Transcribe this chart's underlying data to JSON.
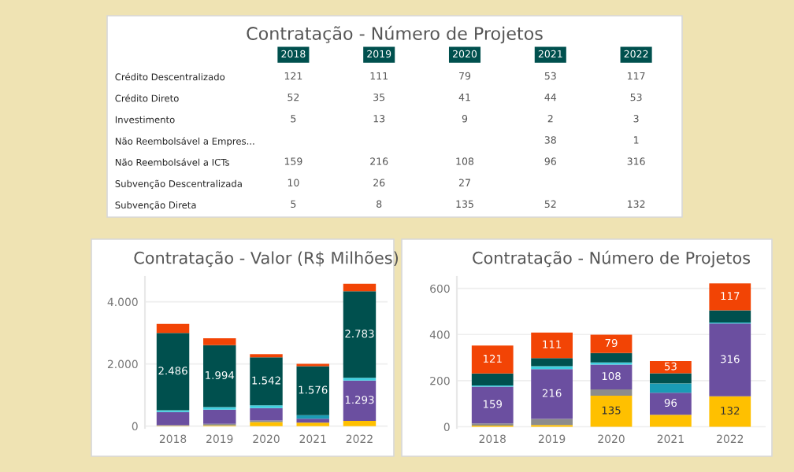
{
  "chart_data": [
    {
      "type": "heatmap",
      "title": "Contratação - Número de Projetos",
      "data_labels": true,
      "categories": [
        "2018",
        "2019",
        "2020",
        "2021",
        "2022"
      ],
      "y_categories": [
        "Crédito Descentralizado",
        "Crédito Direto",
        "Investimento",
        "Não Reembolsável a Empres...",
        "Não Reembolsável a ICTs",
        "Subvenção Descentralizada",
        "Subvenção Direta"
      ],
      "cells": [
        [
          121,
          111,
          79,
          53,
          117
        ],
        [
          52,
          35,
          41,
          44,
          53
        ],
        [
          5,
          13,
          9,
          2,
          3
        ],
        [
          null,
          null,
          null,
          38,
          1
        ],
        [
          159,
          216,
          108,
          96,
          316
        ],
        [
          10,
          26,
          27,
          null,
          null
        ],
        [
          5,
          8,
          135,
          52,
          132
        ]
      ]
    },
    {
      "type": "bar",
      "stacked": true,
      "title": "Contratação - Valor (R$ Milhões)",
      "grid": "y",
      "categories": [
        "2018",
        "2019",
        "2020",
        "2021",
        "2022"
      ],
      "ylim": [
        -60,
        4800
      ],
      "yticks": [
        0,
        {
          "value": 2000,
          "label": "2.000"
        },
        {
          "value": 4000,
          "label": "4.000"
        }
      ],
      "series": [
        {
          "color": "#ffc000",
          "values": [
            10,
            20,
            130,
            110,
            170
          ]
        },
        {
          "color": "#8c8c8c",
          "values": [
            20,
            50,
            50,
            null,
            null
          ]
        },
        {
          "color": "#6b4fa0",
          "values": [
            420,
            460,
            400,
            130,
            1293
          ],
          "value_labels": [
            null,
            null,
            null,
            null,
            "1.293"
          ]
        },
        {
          "color": "#1a9bb5",
          "values": [
            null,
            null,
            null,
            110,
            null
          ]
        },
        {
          "color": "#3fd0e0",
          "values": [
            60,
            80,
            90,
            null,
            90
          ]
        },
        {
          "color": "#00504e",
          "values": [
            2486,
            1994,
            1542,
            1576,
            2783
          ],
          "value_labels": [
            "2.486",
            "1.994",
            "1.542",
            "1.576",
            "2.783"
          ]
        },
        {
          "color": "#f24405",
          "values": [
            290,
            220,
            100,
            80,
            240
          ]
        }
      ]
    },
    {
      "type": "bar",
      "stacked": true,
      "title": "Contratação - Número de Projetos",
      "grid": "y",
      "categories": [
        "2018",
        "2019",
        "2020",
        "2021",
        "2022"
      ],
      "ylim": [
        -5,
        650
      ],
      "yticks": [
        0,
        200,
        400,
        600
      ],
      "series": [
        {
          "color": "#ffc000",
          "values": [
            5,
            8,
            135,
            52,
            132
          ],
          "value_labels": [
            null,
            null,
            "135",
            null,
            "132"
          ]
        },
        {
          "color": "#8c8c8c",
          "values": [
            10,
            26,
            27,
            null,
            null
          ]
        },
        {
          "color": "#6b4fa0",
          "values": [
            159,
            216,
            108,
            96,
            316
          ],
          "value_labels": [
            "159",
            "216",
            "108",
            "96",
            "316"
          ]
        },
        {
          "color": "#1a9bb5",
          "values": [
            null,
            null,
            null,
            38,
            1
          ]
        },
        {
          "color": "#3fd0e0",
          "values": [
            5,
            13,
            9,
            2,
            3
          ]
        },
        {
          "color": "#00504e",
          "values": [
            52,
            35,
            41,
            44,
            53
          ]
        },
        {
          "color": "#f24405",
          "values": [
            121,
            111,
            79,
            53,
            117
          ],
          "value_labels": [
            "121",
            "111",
            "79",
            "53",
            "117"
          ]
        }
      ]
    }
  ]
}
